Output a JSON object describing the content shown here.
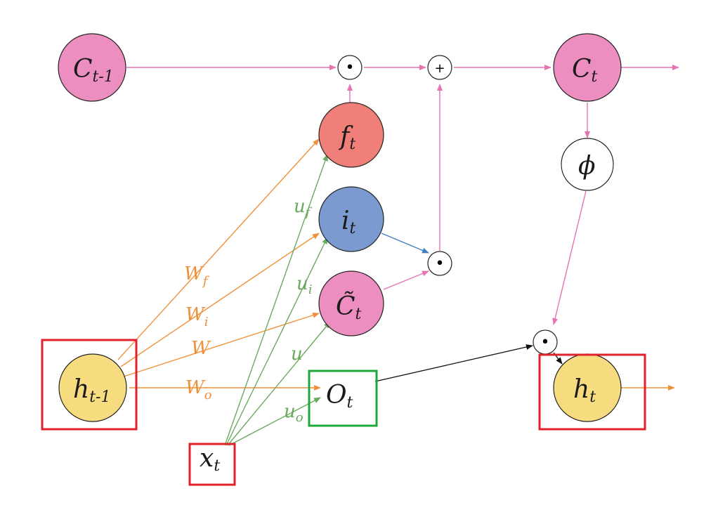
{
  "nodes": {
    "c_prev": {
      "main": "C",
      "sub": "t-1"
    },
    "c_t": {
      "main": "C",
      "sub": "t"
    },
    "f_t": {
      "main": "f",
      "sub": "t"
    },
    "i_t": {
      "main": "i",
      "sub": "t"
    },
    "c_tilde": {
      "main": "C̃",
      "sub": "t"
    },
    "o_t": {
      "main": "O",
      "sub": "t"
    },
    "h_prev": {
      "main": "h",
      "sub": "t-1"
    },
    "h_t": {
      "main": "h",
      "sub": "t"
    },
    "x_t": {
      "main": "x",
      "sub": "t"
    },
    "phi": {
      "main": "ϕ"
    }
  },
  "weights": {
    "w_f": {
      "main": "W",
      "sub": "f"
    },
    "w_i": {
      "main": "W",
      "sub": "i"
    },
    "w": {
      "main": "W"
    },
    "w_o": {
      "main": "W",
      "sub": "o"
    },
    "u_f": {
      "main": "u",
      "sub": "f"
    },
    "u_i": {
      "main": "u",
      "sub": "i"
    },
    "u": {
      "main": "u"
    },
    "u_o": {
      "main": "u",
      "sub": "o"
    }
  },
  "operators": {
    "dot": "•",
    "plus": "+"
  },
  "colors": {
    "cell": "#ec8fc0",
    "forget": "#ef7f78",
    "input": "#7b9bd0",
    "hidden": "#f8dc80",
    "pink_line": "#e673b3",
    "orange_line": "#f0913a",
    "green_line": "#6aaa5e",
    "blue_line": "#3f7fc3",
    "highlight_red": "#e0202a",
    "highlight_green": "#1fa83a"
  }
}
